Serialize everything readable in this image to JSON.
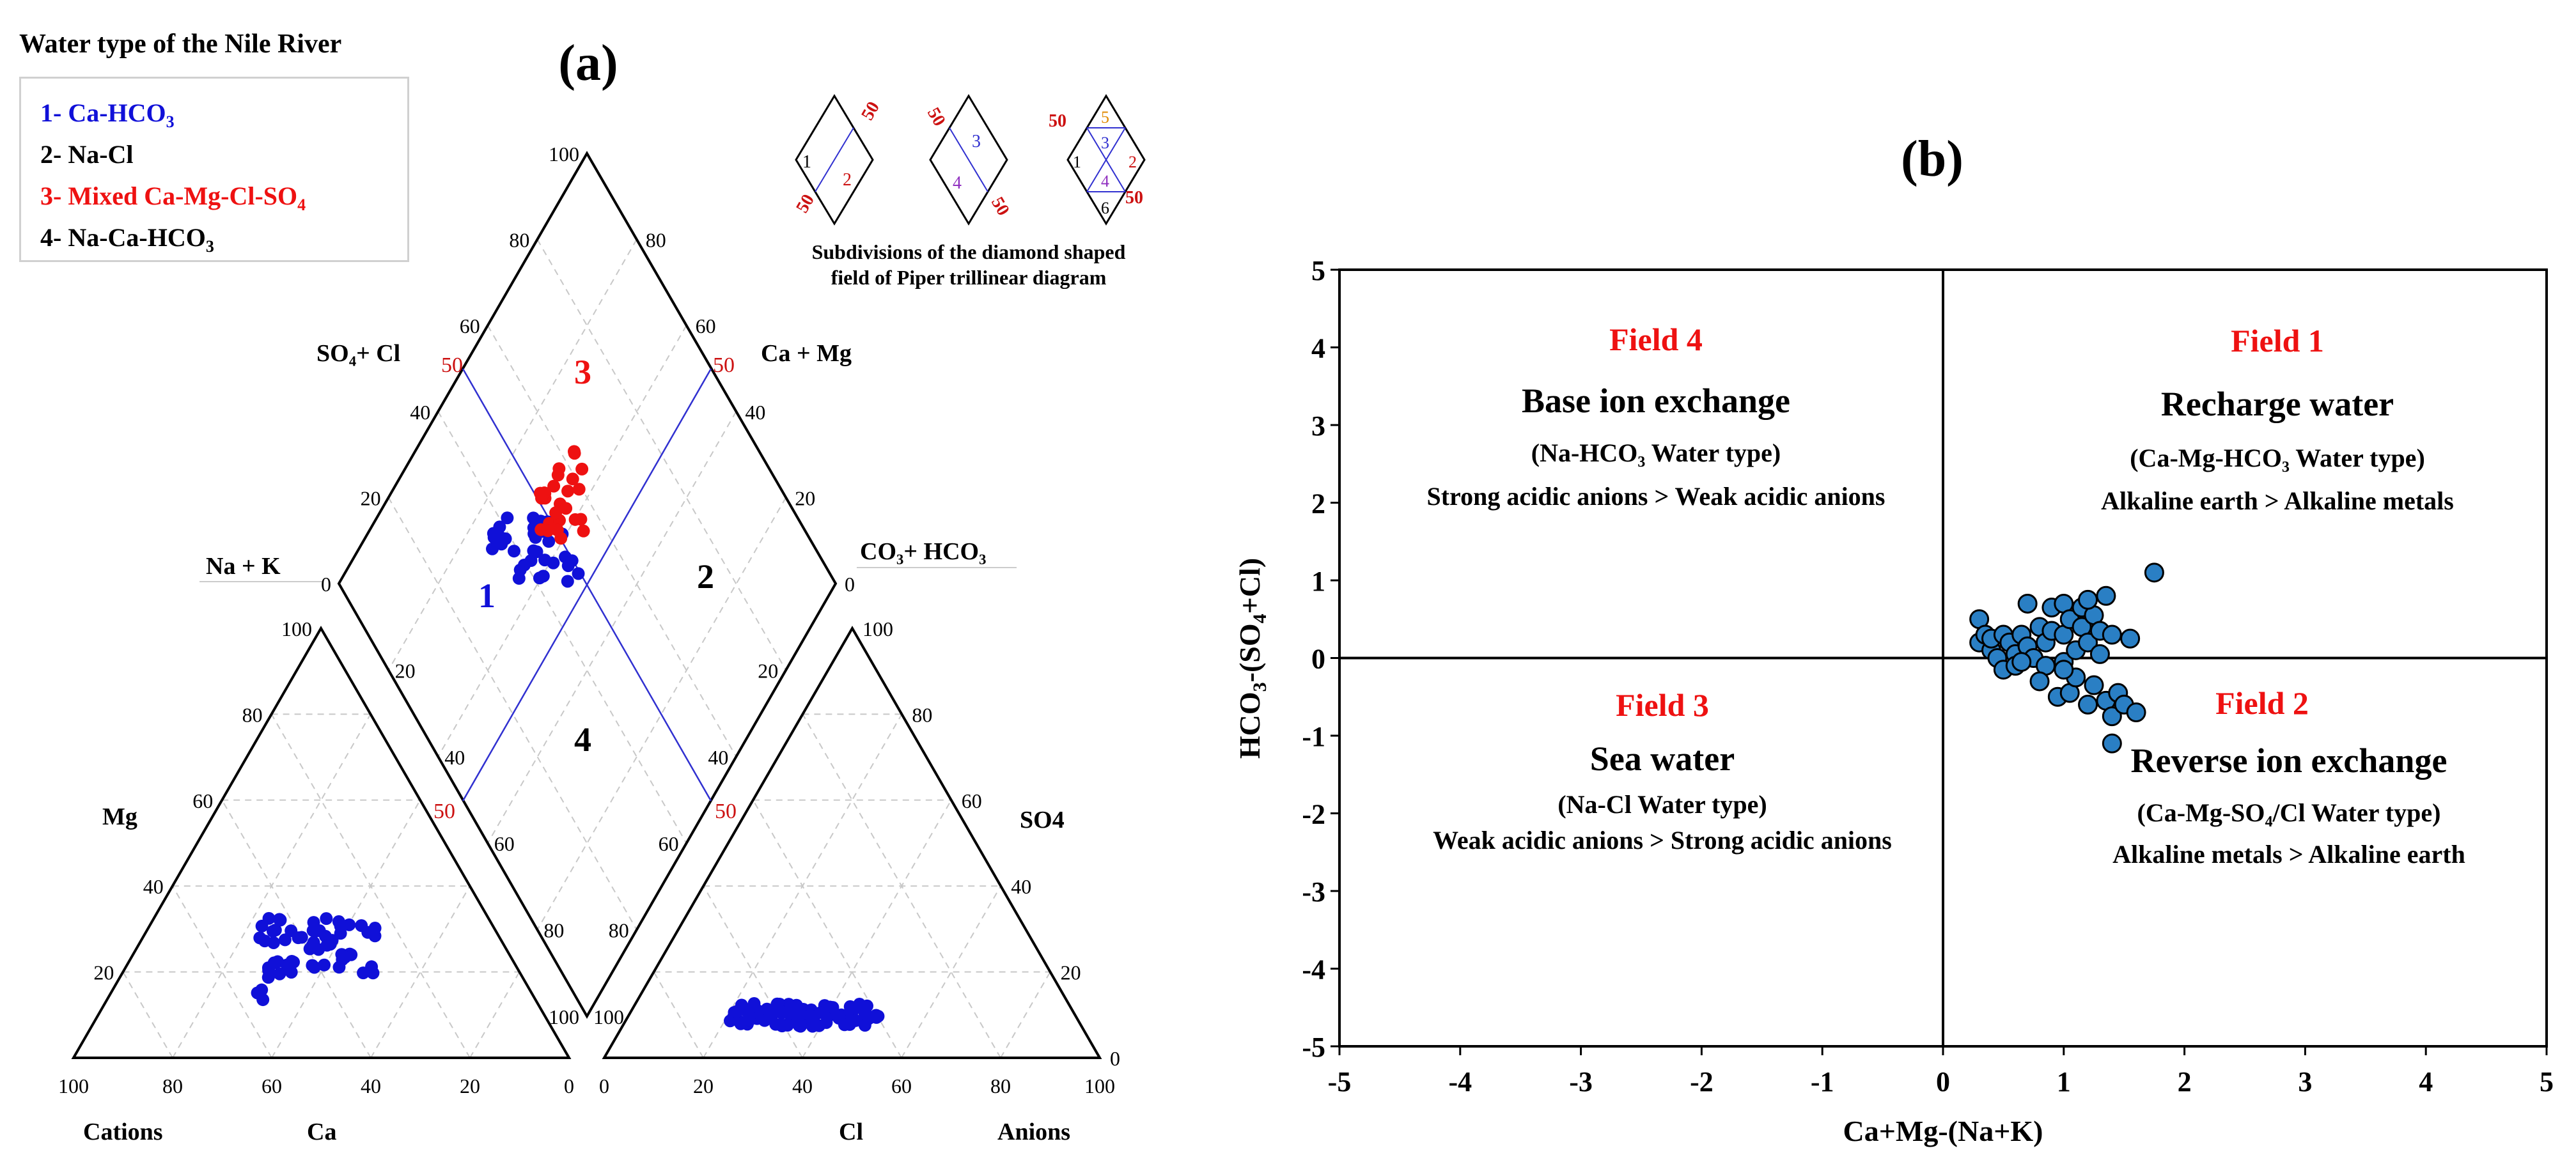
{
  "panel_a": {
    "label": "(a)",
    "legend": {
      "title": "Water type of the Nile River",
      "items": [
        {
          "text": "1- Ca-HCO",
          "sub": "3",
          "color": "#1010d8"
        },
        {
          "text": "2- Na-Cl",
          "sub": "",
          "color": "#000000"
        },
        {
          "text": "3- Mixed Ca-Mg-Cl-SO",
          "sub": "4",
          "color": "#ee1111"
        },
        {
          "text": "4- Na-Ca-HCO",
          "sub": "3",
          "color": "#000000"
        }
      ]
    },
    "subdivision_caption": [
      "Subdivisions of the diamond shaped",
      "field of Piper trillinear diagram"
    ],
    "subdivision_mini": {
      "d1": {
        "nums": [
          "1",
          "2"
        ],
        "fifties": [
          "50",
          "50"
        ]
      },
      "d2": {
        "nums": [
          "3",
          "4"
        ],
        "fifties": [
          "50",
          "50"
        ]
      },
      "d3": {
        "nums": [
          "5",
          "1",
          "3",
          "2",
          "4",
          "6"
        ],
        "fifties": [
          "50",
          "50"
        ]
      }
    },
    "labels": {
      "so4_cl": "SO₄+ Cl",
      "ca_mg": "Ca + Mg",
      "na_k": "Na + K",
      "co3_hco3": "CO₃+ HCO₃",
      "mg": "Mg",
      "so4": "SO4",
      "cations": "Cations",
      "anions": "Anions",
      "ca": "Ca",
      "cl": "Cl",
      "zone1": "1",
      "zone2": "2",
      "zone3": "3",
      "zone4": "4",
      "fifty": "50"
    },
    "ticks": {
      "diamond_top_left": [
        "100",
        "80",
        "60",
        "40",
        "20",
        "0"
      ],
      "diamond_top_right": [
        "80",
        "60",
        "40",
        "20",
        "0"
      ],
      "diamond_low_left": [
        "20",
        "40",
        "60",
        "80",
        "100"
      ],
      "diamond_low_right": [
        "20",
        "40",
        "60",
        "80",
        "100"
      ],
      "left_tri_side": [
        "100",
        "80",
        "60",
        "40",
        "20"
      ],
      "left_tri_base": [
        "100",
        "80",
        "60",
        "40",
        "20",
        "0"
      ],
      "right_tri_side": [
        "100",
        "80",
        "60",
        "40",
        "20",
        "0"
      ],
      "right_tri_base": [
        "0",
        "20",
        "40",
        "60",
        "80",
        "100"
      ]
    },
    "colors": {
      "cation_points": "#1010d8",
      "zone1_points": "#1010d8",
      "zone3_points": "#ee1111",
      "fifty_label": "#cc1111",
      "grid": "#c8c8c8"
    }
  },
  "chart_data": {
    "type": "scatter",
    "label": "(b)",
    "xlabel": "Ca+Mg-(Na+K)",
    "ylabel_parts": [
      "HCO",
      "3",
      "-(SO",
      "4",
      "+Cl)"
    ],
    "xlim": [
      -5,
      5
    ],
    "ylim": [
      -5,
      5
    ],
    "xticks": [
      "-5",
      "-4",
      "-3",
      "-2",
      "-1",
      "0",
      "1",
      "2",
      "3",
      "4",
      "5"
    ],
    "yticks": [
      "5",
      "4",
      "3",
      "2",
      "1",
      "0",
      "-1",
      "-2",
      "-3",
      "-4",
      "-5"
    ],
    "point_color": "#2a7fc4",
    "fields": {
      "f4": {
        "name": "Field 4",
        "title": "Base ion exchange",
        "type": "(Na-HCO₃ Water type)",
        "desc": "Strong acidic anions > Weak acidic anions"
      },
      "f1": {
        "name": "Field 1",
        "title": "Recharge water",
        "type": "(Ca-Mg-HCO₃ Water type)",
        "desc": "Alkaline earth > Alkaline metals"
      },
      "f3": {
        "name": "Field 3",
        "title": "Sea water",
        "type": "(Na-Cl Water type)",
        "desc": "Weak acidic anions > Strong acidic anions"
      },
      "f2": {
        "name": "Field 2",
        "title": "Reverse ion exchange",
        "type": "(Ca-Mg-SO₄/Cl Water type)",
        "desc": "Alkaline metals > Alkaline earth"
      }
    },
    "points": [
      [
        0.3,
        0.5
      ],
      [
        0.3,
        0.2
      ],
      [
        0.35,
        0.3
      ],
      [
        0.4,
        0.1
      ],
      [
        0.4,
        0.25
      ],
      [
        0.45,
        0.0
      ],
      [
        0.5,
        0.3
      ],
      [
        0.5,
        -0.15
      ],
      [
        0.55,
        0.2
      ],
      [
        0.6,
        0.05
      ],
      [
        0.6,
        -0.1
      ],
      [
        0.65,
        0.3
      ],
      [
        0.7,
        0.7
      ],
      [
        0.7,
        0.15
      ],
      [
        0.75,
        0.0
      ],
      [
        0.8,
        0.4
      ],
      [
        0.85,
        0.2
      ],
      [
        0.85,
        -0.1
      ],
      [
        0.9,
        0.65
      ],
      [
        0.9,
        0.35
      ],
      [
        0.95,
        -0.5
      ],
      [
        1.0,
        0.7
      ],
      [
        1.0,
        0.3
      ],
      [
        1.0,
        -0.05
      ],
      [
        1.05,
        0.5
      ],
      [
        1.05,
        -0.45
      ],
      [
        1.1,
        0.1
      ],
      [
        1.1,
        -0.25
      ],
      [
        1.15,
        0.65
      ],
      [
        1.15,
        0.4
      ],
      [
        1.2,
        0.2
      ],
      [
        1.2,
        -0.6
      ],
      [
        1.25,
        0.55
      ],
      [
        1.25,
        -0.35
      ],
      [
        1.3,
        0.35
      ],
      [
        1.3,
        0.05
      ],
      [
        1.35,
        0.8
      ],
      [
        1.35,
        -0.55
      ],
      [
        1.4,
        0.3
      ],
      [
        1.4,
        -0.75
      ],
      [
        1.4,
        -1.1
      ],
      [
        1.45,
        -0.45
      ],
      [
        1.5,
        -0.6
      ],
      [
        1.55,
        0.25
      ],
      [
        1.6,
        -0.7
      ],
      [
        1.75,
        1.1
      ],
      [
        1.0,
        -0.15
      ],
      [
        0.8,
        -0.3
      ],
      [
        1.2,
        0.75
      ],
      [
        0.65,
        -0.05
      ]
    ]
  }
}
